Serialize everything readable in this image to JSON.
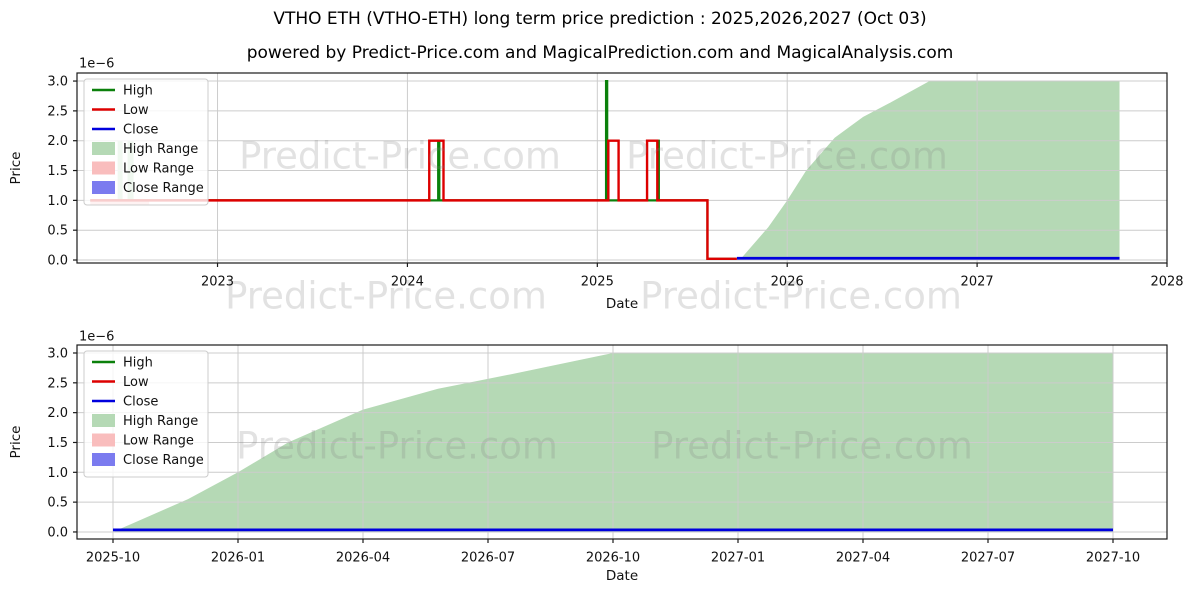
{
  "title": "VTHO ETH (VTHO-ETH) long term price prediction : 2025,2026,2027 (Oct 03)",
  "subtitle": "powered by Predict-Price.com and MagicalPrediction.com and MagicalAnalysis.com",
  "watermark": {
    "text": "Predict-Price.com",
    "color": "#808080"
  },
  "colors": {
    "high_line": "#0b800b",
    "low_line": "#dd0000",
    "close_line": "#0000dd",
    "high_range_fill": "#b5d9b5",
    "low_range_fill": "#f9bdbd",
    "close_range_fill": "#7b7bef",
    "grid": "#cccccc",
    "frame": "#1a1a1a"
  },
  "chart_data": [
    {
      "type": "line",
      "id": "long-term-chart",
      "xlabel": "Date",
      "ylabel": "Price",
      "y_offset_label": "1e−6",
      "grid": true,
      "legend_position": "upper left",
      "xlim": [
        2022.26,
        2028.0
      ],
      "ylim": [
        -0.05,
        3.135
      ],
      "yticks": [
        0.0,
        0.5,
        1.0,
        1.5,
        2.0,
        2.5,
        3.0
      ],
      "ytick_labels": [
        "0.0",
        "0.5",
        "1.0",
        "1.5",
        "2.0",
        "2.5",
        "3.0"
      ],
      "xticks": [
        2023,
        2024,
        2025,
        2026,
        2027,
        2028
      ],
      "xtick_labels": [
        "2023",
        "2024",
        "2025",
        "2026",
        "2027",
        "2028"
      ],
      "areas": [
        {
          "name": "High Range",
          "color": "#b5d9b5",
          "polygon": [
            [
              2025.75,
              0.0
            ],
            [
              2025.9,
              0.55
            ],
            [
              2026.0,
              1.0
            ],
            [
              2026.1,
              1.5
            ],
            [
              2026.25,
              2.05
            ],
            [
              2026.4,
              2.4
            ],
            [
              2026.55,
              2.65
            ],
            [
              2026.75,
              3.0
            ],
            [
              2027.75,
              3.0
            ],
            [
              2027.75,
              0.0
            ]
          ]
        },
        {
          "name": "High Range historical band 1",
          "color": "#b5d9b5",
          "polygon": [
            [
              2022.474,
              1.0
            ],
            [
              2022.474,
              2.0
            ],
            [
              2022.5,
              2.0
            ],
            [
              2022.5,
              1.0
            ]
          ]
        },
        {
          "name": "High Range historical band 2",
          "color": "#b5d9b5",
          "polygon": [
            [
              2022.526,
              1.0
            ],
            [
              2022.526,
              2.0
            ],
            [
              2022.558,
              2.0
            ],
            [
              2022.558,
              1.0
            ]
          ]
        },
        {
          "name": "Low Range historical band",
          "color": "#f9bdbd",
          "polygon": [
            [
              2022.33,
              1.02
            ],
            [
              2022.64,
              1.02
            ],
            [
              2022.64,
              0.92
            ],
            [
              2022.33,
              0.92
            ]
          ]
        }
      ],
      "lines": [
        {
          "name": "High",
          "color": "#0b800b",
          "width": 2.2,
          "points": [
            [
              2022.33,
              1.0
            ],
            [
              2024.162,
              1.0
            ],
            [
              2024.162,
              2.0
            ],
            [
              2024.168,
              2.0
            ],
            [
              2024.168,
              1.0
            ],
            [
              2025.046,
              1.0
            ],
            [
              2025.046,
              3.0
            ],
            [
              2025.052,
              3.0
            ],
            [
              2025.052,
              1.0
            ],
            [
              2025.318,
              1.0
            ],
            [
              2025.318,
              2.0
            ],
            [
              2025.324,
              2.0
            ],
            [
              2025.324,
              1.0
            ],
            [
              2025.58,
              1.0
            ],
            [
              2025.58,
              0.02
            ],
            [
              2025.73,
              0.02
            ]
          ]
        },
        {
          "name": "Low",
          "color": "#dd0000",
          "width": 2.4,
          "points": [
            [
              2022.33,
              1.0
            ],
            [
              2024.115,
              1.0
            ],
            [
              2024.115,
              2.0
            ],
            [
              2024.19,
              2.0
            ],
            [
              2024.19,
              1.0
            ],
            [
              2025.058,
              1.0
            ],
            [
              2025.058,
              2.0
            ],
            [
              2025.112,
              2.0
            ],
            [
              2025.112,
              1.0
            ],
            [
              2025.262,
              1.0
            ],
            [
              2025.262,
              2.0
            ],
            [
              2025.316,
              2.0
            ],
            [
              2025.316,
              1.0
            ],
            [
              2025.58,
              1.0
            ],
            [
              2025.58,
              0.02
            ],
            [
              2025.735,
              0.02
            ]
          ]
        },
        {
          "name": "Close",
          "color": "#0000dd",
          "width": 2.8,
          "points": [
            [
              2025.735,
              0.03
            ],
            [
              2027.75,
              0.03
            ]
          ]
        }
      ],
      "legend": [
        {
          "label": "High",
          "swatch": "line",
          "color": "#0b800b"
        },
        {
          "label": "Low",
          "swatch": "line",
          "color": "#dd0000"
        },
        {
          "label": "Close",
          "swatch": "line",
          "color": "#0000dd"
        },
        {
          "label": "High Range",
          "swatch": "patch",
          "color": "#b5d9b5"
        },
        {
          "label": "Low Range",
          "swatch": "patch",
          "color": "#f9bdbd"
        },
        {
          "label": "Close Range",
          "swatch": "patch",
          "color": "#7b7bef"
        }
      ]
    },
    {
      "type": "line",
      "id": "prediction-chart",
      "xlabel": "Date",
      "ylabel": "Price",
      "y_offset_label": "1e−6",
      "grid": true,
      "legend_position": "upper left",
      "xlim": [
        2025.678,
        2027.858
      ],
      "ylim": [
        -0.118,
        3.134
      ],
      "yticks": [
        0.0,
        0.5,
        1.0,
        1.5,
        2.0,
        2.5,
        3.0
      ],
      "ytick_labels": [
        "0.0",
        "0.5",
        "1.0",
        "1.5",
        "2.0",
        "2.5",
        "3.0"
      ],
      "xticks": [
        2025.75,
        2026.0,
        2026.25,
        2026.5,
        2026.75,
        2027.0,
        2027.25,
        2027.5,
        2027.75
      ],
      "xtick_labels": [
        "2025-10",
        "2026-01",
        "2026-04",
        "2026-07",
        "2026-10",
        "2027-01",
        "2027-04",
        "2027-07",
        "2027-10"
      ],
      "areas": [
        {
          "name": "High Range",
          "color": "#b5d9b5",
          "polygon": [
            [
              2025.75,
              0.0
            ],
            [
              2025.9,
              0.55
            ],
            [
              2026.0,
              1.0
            ],
            [
              2026.1,
              1.5
            ],
            [
              2026.25,
              2.05
            ],
            [
              2026.4,
              2.4
            ],
            [
              2026.55,
              2.65
            ],
            [
              2026.75,
              3.0
            ],
            [
              2027.75,
              3.0
            ],
            [
              2027.75,
              0.0
            ]
          ]
        }
      ],
      "lines": [
        {
          "name": "Close",
          "color": "#0000dd",
          "width": 2.8,
          "points": [
            [
              2025.75,
              0.035
            ],
            [
              2027.75,
              0.035
            ]
          ]
        }
      ],
      "legend": [
        {
          "label": "High",
          "swatch": "line",
          "color": "#0b800b"
        },
        {
          "label": "Low",
          "swatch": "line",
          "color": "#dd0000"
        },
        {
          "label": "Close",
          "swatch": "line",
          "color": "#0000dd"
        },
        {
          "label": "High Range",
          "swatch": "patch",
          "color": "#b5d9b5"
        },
        {
          "label": "Low Range",
          "swatch": "patch",
          "color": "#f9bdbd"
        },
        {
          "label": "Close Range",
          "swatch": "patch",
          "color": "#7b7bef"
        }
      ]
    }
  ]
}
